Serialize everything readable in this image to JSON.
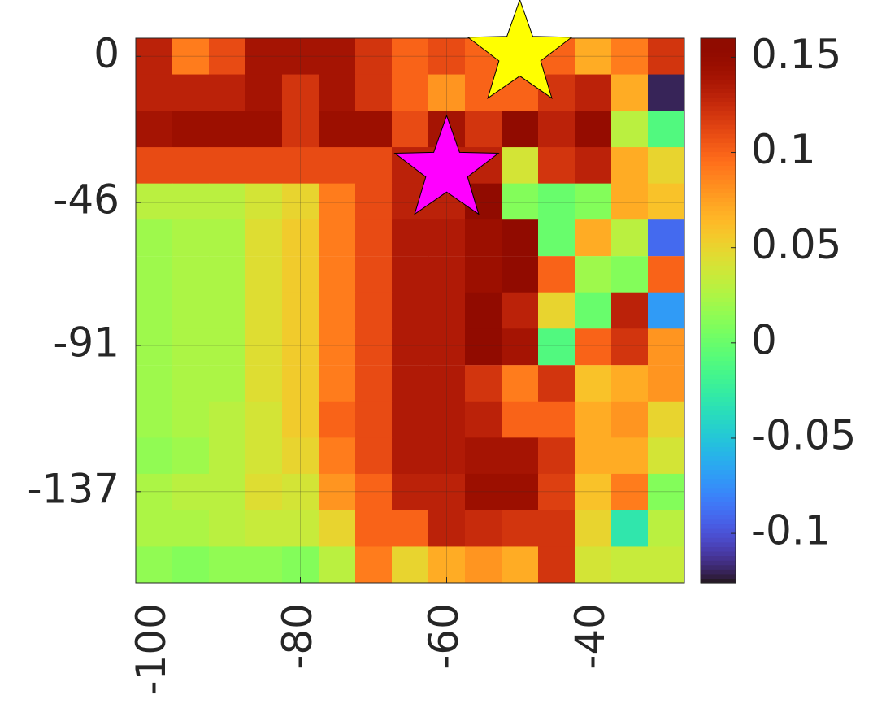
{
  "chart_data": {
    "type": "heatmap",
    "colormap": "turbo",
    "x": [
      -100,
      -95,
      -90,
      -85,
      -80,
      -75,
      -70,
      -65,
      -60,
      -55,
      -50,
      -45,
      -40,
      -35,
      -30
    ],
    "y": [
      0,
      -11.4,
      -22.9,
      -34.3,
      -45.7,
      -57.1,
      -68.6,
      -80,
      -91.4,
      -102.9,
      -114.3,
      -125.7,
      -137.1,
      -148.6,
      -160
    ],
    "z": [
      [
        0.13,
        0.09,
        0.11,
        0.14,
        0.14,
        0.14,
        0.12,
        0.1,
        0.11,
        0.1,
        0.1,
        0.1,
        0.07,
        0.09,
        0.12
      ],
      [
        0.13,
        0.13,
        0.13,
        0.14,
        0.12,
        0.14,
        0.12,
        0.1,
        0.08,
        0.1,
        0.1,
        0.12,
        0.13,
        0.07,
        -0.12
      ],
      [
        0.14,
        0.145,
        0.145,
        0.145,
        0.12,
        0.145,
        0.145,
        0.11,
        0.14,
        0.12,
        0.155,
        0.13,
        0.15,
        0.03,
        -0.01
      ],
      [
        0.11,
        0.11,
        0.11,
        0.11,
        0.11,
        0.11,
        0.11,
        0.13,
        0.13,
        0.13,
        0.04,
        0.12,
        0.13,
        0.07,
        0.05
      ],
      [
        0.03,
        0.03,
        0.03,
        0.04,
        0.05,
        0.09,
        0.11,
        0.13,
        0.13,
        0.155,
        0.01,
        0,
        0.01,
        0.07,
        0.06
      ],
      [
        0.02,
        0.025,
        0.025,
        0.045,
        0.055,
        0.09,
        0.11,
        0.135,
        0.135,
        0.145,
        0.155,
        0,
        0.07,
        0.03,
        -0.09
      ],
      [
        0.02,
        0.025,
        0.025,
        0.045,
        0.055,
        0.09,
        0.11,
        0.135,
        0.135,
        0.145,
        0.155,
        0.1,
        0.02,
        0.01,
        0.1
      ],
      [
        0.02,
        0.025,
        0.025,
        0.045,
        0.055,
        0.09,
        0.11,
        0.135,
        0.135,
        0.155,
        0.13,
        0.05,
        0,
        0.13,
        -0.07
      ],
      [
        0.02,
        0.025,
        0.025,
        0.045,
        0.055,
        0.09,
        0.11,
        0.135,
        0.135,
        0.155,
        0.14,
        -0.01,
        0.1,
        0.12,
        0.08
      ],
      [
        0.02,
        0.025,
        0.025,
        0.045,
        0.055,
        0.09,
        0.11,
        0.135,
        0.135,
        0.12,
        0.09,
        0.12,
        0.06,
        0.07,
        0.08
      ],
      [
        0.02,
        0.025,
        0.03,
        0.04,
        0.055,
        0.1,
        0.11,
        0.135,
        0.135,
        0.13,
        0.1,
        0.1,
        0.07,
        0.08,
        0.05
      ],
      [
        0.015,
        0.02,
        0.03,
        0.04,
        0.05,
        0.09,
        0.11,
        0.135,
        0.135,
        0.14,
        0.14,
        0.12,
        0.07,
        0.07,
        0.04
      ],
      [
        0.025,
        0.03,
        0.03,
        0.045,
        0.04,
        0.08,
        0.1,
        0.13,
        0.13,
        0.145,
        0.145,
        0.115,
        0.06,
        0.09,
        0.01
      ],
      [
        0.025,
        0.025,
        0.03,
        0.035,
        0.035,
        0.05,
        0.1,
        0.1,
        0.13,
        0.125,
        0.12,
        0.12,
        0.05,
        -0.03,
        0.03
      ],
      [
        0.015,
        0.01,
        0.015,
        0.015,
        0.01,
        0.03,
        0.09,
        0.05,
        0.07,
        0.08,
        0.07,
        0.12,
        0.04,
        0.035,
        0.035
      ]
    ],
    "xlim": [
      -102.5,
      -27.5
    ],
    "xticks": [
      -100,
      -80,
      -60,
      -40
    ],
    "ylim": [
      -165.7,
      5.7
    ],
    "yticks": [
      0,
      -46,
      -91,
      -137
    ],
    "clim": [
      -0.126,
      0.16
    ],
    "cticks": [
      0.15,
      0.1,
      0.05,
      0,
      -0.05,
      -0.1
    ],
    "grid": true,
    "markers": [
      {
        "x": -50,
        "y": 0.7,
        "color": "#ffff00"
      },
      {
        "x": -60,
        "y": -35.8,
        "color": "#ff00ff"
      }
    ]
  }
}
